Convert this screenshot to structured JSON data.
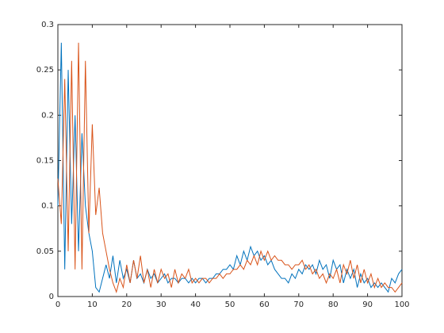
{
  "chart_data": {
    "type": "line",
    "x": [
      0,
      1,
      2,
      3,
      4,
      5,
      6,
      7,
      8,
      9,
      10,
      11,
      12,
      13,
      14,
      15,
      16,
      17,
      18,
      19,
      20,
      21,
      22,
      23,
      24,
      25,
      26,
      27,
      28,
      29,
      30,
      31,
      32,
      33,
      34,
      35,
      36,
      37,
      38,
      39,
      40,
      41,
      42,
      43,
      44,
      45,
      46,
      47,
      48,
      49,
      50,
      51,
      52,
      53,
      54,
      55,
      56,
      57,
      58,
      59,
      60,
      61,
      62,
      63,
      64,
      65,
      66,
      67,
      68,
      69,
      70,
      71,
      72,
      73,
      74,
      75,
      76,
      77,
      78,
      79,
      80,
      81,
      82,
      83,
      84,
      85,
      86,
      87,
      88,
      89,
      90,
      91,
      92,
      93,
      94,
      95,
      96,
      97,
      98,
      99,
      100
    ],
    "series": [
      {
        "color": "#0072bd",
        "values": [
          0.1,
          0.28,
          0.03,
          0.25,
          0.08,
          0.2,
          0.05,
          0.18,
          0.1,
          0.07,
          0.05,
          0.01,
          0.005,
          0.02,
          0.035,
          0.02,
          0.045,
          0.015,
          0.04,
          0.02,
          0.03,
          0.015,
          0.04,
          0.02,
          0.025,
          0.015,
          0.03,
          0.02,
          0.025,
          0.015,
          0.02,
          0.025,
          0.015,
          0.02,
          0.02,
          0.015,
          0.02,
          0.02,
          0.015,
          0.02,
          0.015,
          0.02,
          0.02,
          0.015,
          0.02,
          0.02,
          0.025,
          0.025,
          0.03,
          0.03,
          0.035,
          0.03,
          0.045,
          0.035,
          0.05,
          0.04,
          0.055,
          0.045,
          0.05,
          0.04,
          0.045,
          0.035,
          0.04,
          0.03,
          0.025,
          0.02,
          0.02,
          0.015,
          0.025,
          0.02,
          0.03,
          0.025,
          0.035,
          0.03,
          0.035,
          0.025,
          0.04,
          0.03,
          0.035,
          0.02,
          0.04,
          0.03,
          0.035,
          0.015,
          0.03,
          0.02,
          0.03,
          0.01,
          0.025,
          0.015,
          0.02,
          0.01,
          0.015,
          0.01,
          0.015,
          0.01,
          0.005,
          0.02,
          0.015,
          0.025,
          0.03
        ]
      },
      {
        "color": "#d95319",
        "values": [
          0.13,
          0.08,
          0.24,
          0.05,
          0.26,
          0.03,
          0.28,
          0.03,
          0.26,
          0.07,
          0.19,
          0.09,
          0.12,
          0.07,
          0.05,
          0.03,
          0.015,
          0.005,
          0.02,
          0.01,
          0.035,
          0.015,
          0.04,
          0.02,
          0.045,
          0.015,
          0.03,
          0.01,
          0.03,
          0.015,
          0.03,
          0.02,
          0.025,
          0.01,
          0.03,
          0.015,
          0.025,
          0.02,
          0.03,
          0.015,
          0.02,
          0.015,
          0.02,
          0.02,
          0.015,
          0.02,
          0.02,
          0.025,
          0.02,
          0.025,
          0.025,
          0.03,
          0.03,
          0.035,
          0.03,
          0.04,
          0.035,
          0.045,
          0.035,
          0.05,
          0.04,
          0.05,
          0.04,
          0.045,
          0.04,
          0.04,
          0.035,
          0.035,
          0.03,
          0.035,
          0.035,
          0.04,
          0.03,
          0.035,
          0.025,
          0.03,
          0.02,
          0.025,
          0.015,
          0.025,
          0.02,
          0.03,
          0.015,
          0.035,
          0.025,
          0.04,
          0.02,
          0.035,
          0.015,
          0.03,
          0.015,
          0.025,
          0.01,
          0.02,
          0.01,
          0.015,
          0.01,
          0.01,
          0.005,
          0.01,
          0.015
        ]
      }
    ],
    "xlim": [
      0,
      100
    ],
    "xticks": [
      0,
      10,
      20,
      30,
      40,
      50,
      60,
      70,
      80,
      90,
      100
    ],
    "ylim": [
      0,
      0.3
    ],
    "yticks": [
      0,
      0.05,
      0.1,
      0.15,
      0.2,
      0.25,
      0.3
    ]
  }
}
